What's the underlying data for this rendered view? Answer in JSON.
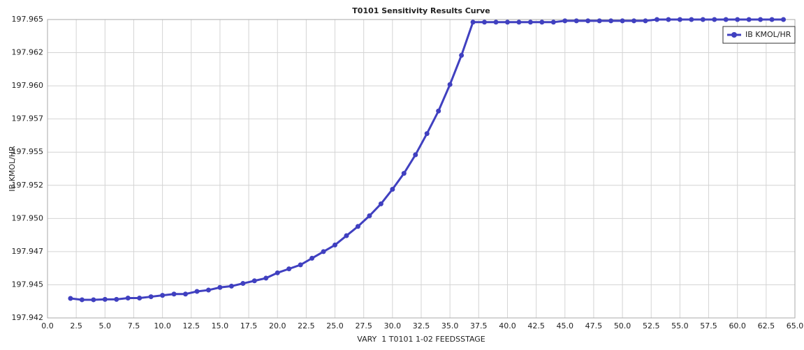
{
  "chart_data": {
    "type": "line",
    "title": "T0101 Sensitivity Results Curve",
    "x_label": "VARY  1 T0101 1-02 FEEDSSTAGE",
    "y_label": "IB KMOL/HR",
    "x": [
      2,
      3,
      4,
      5,
      6,
      7,
      8,
      9,
      10,
      11,
      12,
      13,
      14,
      15,
      16,
      17,
      18,
      19,
      20,
      21,
      22,
      23,
      24,
      25,
      26,
      27,
      28,
      29,
      30,
      31,
      32,
      33,
      34,
      35,
      36,
      37,
      38,
      39,
      40,
      41,
      42,
      43,
      44,
      45,
      46,
      47,
      48,
      49,
      50,
      51,
      52,
      53,
      54,
      55,
      56,
      57,
      58,
      59,
      60,
      61,
      62,
      63,
      64
    ],
    "series": [
      {
        "name": "IB KMOL/HR",
        "color": "#4040c0",
        "values": [
          197.94397,
          197.94387,
          197.94387,
          197.9439,
          197.9439,
          197.944,
          197.944,
          197.9441,
          197.9442,
          197.9443,
          197.9443,
          197.9445,
          197.9446,
          197.9448,
          197.9449,
          197.9451,
          197.9453,
          197.9455,
          197.9459,
          197.9462,
          197.9465,
          197.947,
          197.9475,
          197.948,
          197.9487,
          197.9494,
          197.9502,
          197.9511,
          197.9522,
          197.9534,
          197.9548,
          197.9564,
          197.9581,
          197.9601,
          197.9623,
          197.9648,
          197.9648,
          197.9648,
          197.9648,
          197.9648,
          197.9648,
          197.9648,
          197.9648,
          197.9649,
          197.9649,
          197.9649,
          197.9649,
          197.9649,
          197.9649,
          197.9649,
          197.9649,
          197.965,
          197.965,
          197.965,
          197.965,
          197.965,
          197.965,
          197.965,
          197.965,
          197.965,
          197.965,
          197.965,
          197.965
        ]
      }
    ],
    "xlim": [
      0,
      65
    ],
    "ylim": [
      197.9425,
      197.965
    ],
    "xticks": [
      {
        "value": 0,
        "label": "0.0"
      },
      2.5,
      {
        "value": 5,
        "label": "5.0"
      },
      7.5,
      {
        "value": 10,
        "label": "10.0"
      },
      12.5,
      {
        "value": 15,
        "label": "15.0"
      },
      17.5,
      {
        "value": 20,
        "label": "20.0"
      },
      22.5,
      {
        "value": 25,
        "label": "25.0"
      },
      27.5,
      {
        "value": 30,
        "label": "30.0"
      },
      32.5,
      {
        "value": 35,
        "label": "35.0"
      },
      37.5,
      {
        "value": 40,
        "label": "40.0"
      },
      42.5,
      {
        "value": 45,
        "label": "45.0"
      },
      47.5,
      {
        "value": 50,
        "label": "50.0"
      },
      52.5,
      {
        "value": 55,
        "label": "55.0"
      },
      57.5,
      {
        "value": 60,
        "label": "60.0"
      },
      62.5,
      {
        "value": 65,
        "label": "65.0"
      }
    ],
    "yticks": [
      {
        "value": 197.9425,
        "label": "197.942"
      },
      {
        "value": 197.945,
        "label": "197.945"
      },
      {
        "value": 197.9475,
        "label": "197.947"
      },
      {
        "value": 197.95,
        "label": "197.950"
      },
      {
        "value": 197.9525,
        "label": "197.952"
      },
      {
        "value": 197.955,
        "label": "197.955"
      },
      {
        "value": 197.9575,
        "label": "197.957"
      },
      {
        "value": 197.96,
        "label": "197.960"
      },
      {
        "value": 197.9625,
        "label": "197.962"
      },
      {
        "value": 197.965,
        "label": "197.965"
      }
    ],
    "grid": true,
    "legend": "top-right"
  }
}
